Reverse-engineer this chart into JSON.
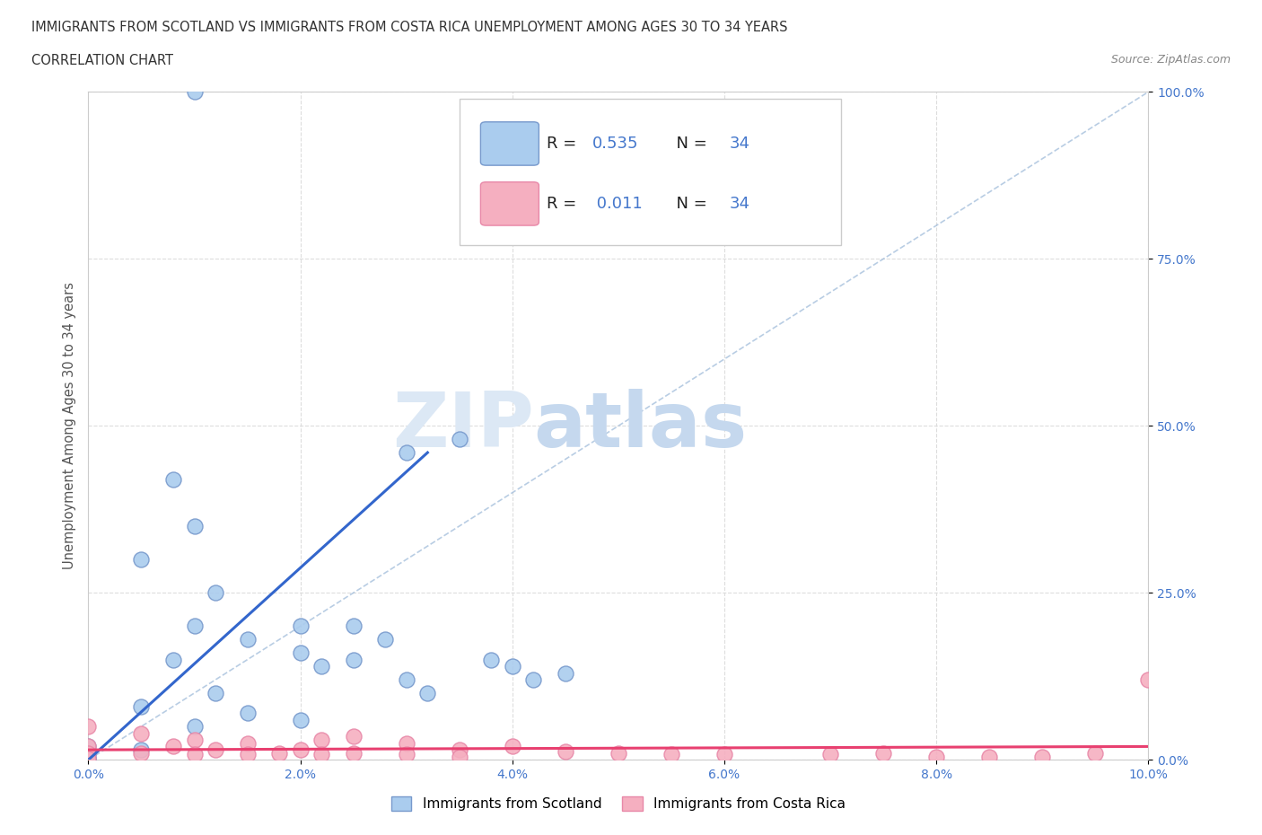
{
  "title_line1": "IMMIGRANTS FROM SCOTLAND VS IMMIGRANTS FROM COSTA RICA UNEMPLOYMENT AMONG AGES 30 TO 34 YEARS",
  "title_line2": "CORRELATION CHART",
  "source_text": "Source: ZipAtlas.com",
  "ylabel": "Unemployment Among Ages 30 to 34 years",
  "xlim": [
    0.0,
    0.1
  ],
  "ylim": [
    0.0,
    1.0
  ],
  "xticks": [
    0.0,
    0.02,
    0.04,
    0.06,
    0.08,
    0.1
  ],
  "yticks": [
    0.0,
    0.25,
    0.5,
    0.75,
    1.0
  ],
  "xtick_labels": [
    "0.0%",
    "2.0%",
    "4.0%",
    "6.0%",
    "8.0%",
    "10.0%"
  ],
  "ytick_labels": [
    "0.0%",
    "25.0%",
    "50.0%",
    "75.0%",
    "100.0%"
  ],
  "scotland_color": "#aaccee",
  "costa_rica_color": "#f5afc0",
  "scotland_edge_color": "#7799cc",
  "costa_rica_edge_color": "#e888a8",
  "trend_scotland_color": "#3366cc",
  "trend_costa_rica_color": "#e84070",
  "diagonal_color": "#9bb8d8",
  "scotland_R": 0.535,
  "scotland_N": 34,
  "costa_rica_R": 0.011,
  "costa_rica_N": 34,
  "scotland_x": [
    0.0,
    0.0,
    0.0,
    0.0,
    0.0,
    0.0,
    0.005,
    0.005,
    0.005,
    0.008,
    0.008,
    0.01,
    0.01,
    0.01,
    0.012,
    0.012,
    0.015,
    0.015,
    0.02,
    0.02,
    0.02,
    0.022,
    0.025,
    0.025,
    0.028,
    0.03,
    0.03,
    0.032,
    0.035,
    0.038,
    0.04,
    0.042,
    0.045,
    0.01
  ],
  "scotland_y": [
    0.02,
    0.01,
    0.005,
    0.002,
    0.001,
    0.0,
    0.3,
    0.08,
    0.015,
    0.42,
    0.15,
    0.35,
    0.2,
    0.05,
    0.25,
    0.1,
    0.18,
    0.07,
    0.2,
    0.16,
    0.06,
    0.14,
    0.2,
    0.15,
    0.18,
    0.46,
    0.12,
    0.1,
    0.48,
    0.15,
    0.14,
    0.12,
    0.13,
    1.0
  ],
  "costa_rica_x": [
    0.0,
    0.0,
    0.0,
    0.0,
    0.005,
    0.005,
    0.008,
    0.01,
    0.01,
    0.012,
    0.015,
    0.015,
    0.018,
    0.02,
    0.022,
    0.022,
    0.025,
    0.025,
    0.03,
    0.03,
    0.035,
    0.035,
    0.04,
    0.045,
    0.05,
    0.055,
    0.06,
    0.07,
    0.075,
    0.08,
    0.085,
    0.09,
    0.095,
    0.1
  ],
  "costa_rica_y": [
    0.05,
    0.02,
    0.01,
    0.002,
    0.04,
    0.01,
    0.02,
    0.03,
    0.008,
    0.015,
    0.025,
    0.008,
    0.01,
    0.015,
    0.03,
    0.008,
    0.036,
    0.01,
    0.025,
    0.008,
    0.015,
    0.005,
    0.02,
    0.012,
    0.01,
    0.008,
    0.008,
    0.008,
    0.01,
    0.005,
    0.005,
    0.005,
    0.01,
    0.12
  ],
  "watermark_zip": "ZIP",
  "watermark_atlas": "atlas",
  "watermark_color": "#c5d8ee",
  "legend_scotland_label": "Immigrants from Scotland",
  "legend_costa_rica_label": "Immigrants from Costa Rica",
  "background_color": "#ffffff",
  "grid_color": "#dddddd",
  "tick_color": "#4477cc",
  "title_color": "#333333"
}
